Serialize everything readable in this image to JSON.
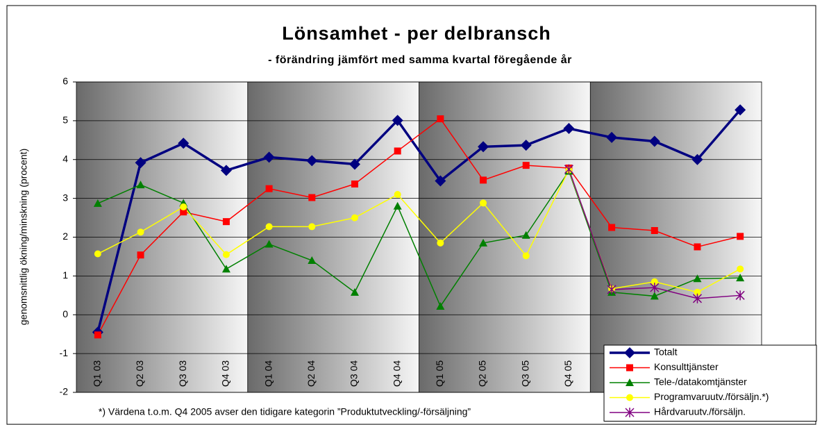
{
  "chart_data": {
    "type": "line",
    "title": "Lönsamhet - per delbransch",
    "subtitle": "- förändring jämfört med samma kvartal föregående år",
    "y_label": "genomsnittlig ökning/minskning (procent)",
    "annotation": "*) Värdena t.o.m. Q4 2005 avser den tidigare kategorin ”Produktutveckling/-försäljning”",
    "categories": [
      "Q1 03",
      "Q2 03",
      "Q3 03",
      "Q4 03",
      "Q1 04",
      "Q2 04",
      "Q3 04",
      "Q4 04",
      "Q1 05",
      "Q2 05",
      "Q3 05",
      "Q4 05",
      null,
      null,
      null,
      null
    ],
    "ylim": [
      -2,
      6
    ],
    "yticks": [
      -2,
      -1,
      0,
      1,
      2,
      3,
      4,
      5,
      6
    ],
    "grid": true,
    "legend": "lower right",
    "series": [
      {
        "name": "Totalt",
        "color": "#000080",
        "marker": "diamond",
        "values": [
          -0.45,
          3.92,
          4.42,
          3.72,
          4.06,
          3.97,
          3.88,
          5.01,
          3.45,
          4.33,
          4.37,
          4.8,
          4.57,
          4.47,
          4.0,
          5.28
        ]
      },
      {
        "name": "Konsulttjänster",
        "color": "#ff0000",
        "marker": "square",
        "values": [
          -0.52,
          1.54,
          2.65,
          2.4,
          3.25,
          3.02,
          3.37,
          4.22,
          5.05,
          3.47,
          3.85,
          3.78,
          2.25,
          2.17,
          1.75,
          2.02
        ]
      },
      {
        "name": "Tele-/datakomtjänster",
        "color": "#008000",
        "marker": "triangle",
        "values": [
          2.87,
          3.35,
          2.88,
          1.18,
          1.82,
          1.4,
          0.58,
          2.8,
          0.22,
          1.85,
          2.05,
          3.7,
          0.58,
          0.48,
          0.93,
          0.95
        ]
      },
      {
        "name": "Programvaruutv./försäljn.*)",
        "color": "#ffff00",
        "marker": "circle",
        "values": [
          1.57,
          2.13,
          2.78,
          1.55,
          2.27,
          2.27,
          2.5,
          3.1,
          1.85,
          2.88,
          1.52,
          3.73,
          0.67,
          0.85,
          0.58,
          1.18
        ]
      },
      {
        "name": "Hårdvaruutv./försäljn.",
        "color": "#800080",
        "marker": "star",
        "values": [
          null,
          null,
          null,
          null,
          null,
          null,
          null,
          null,
          null,
          null,
          null,
          3.75,
          0.65,
          0.7,
          0.42,
          0.5
        ]
      }
    ]
  }
}
